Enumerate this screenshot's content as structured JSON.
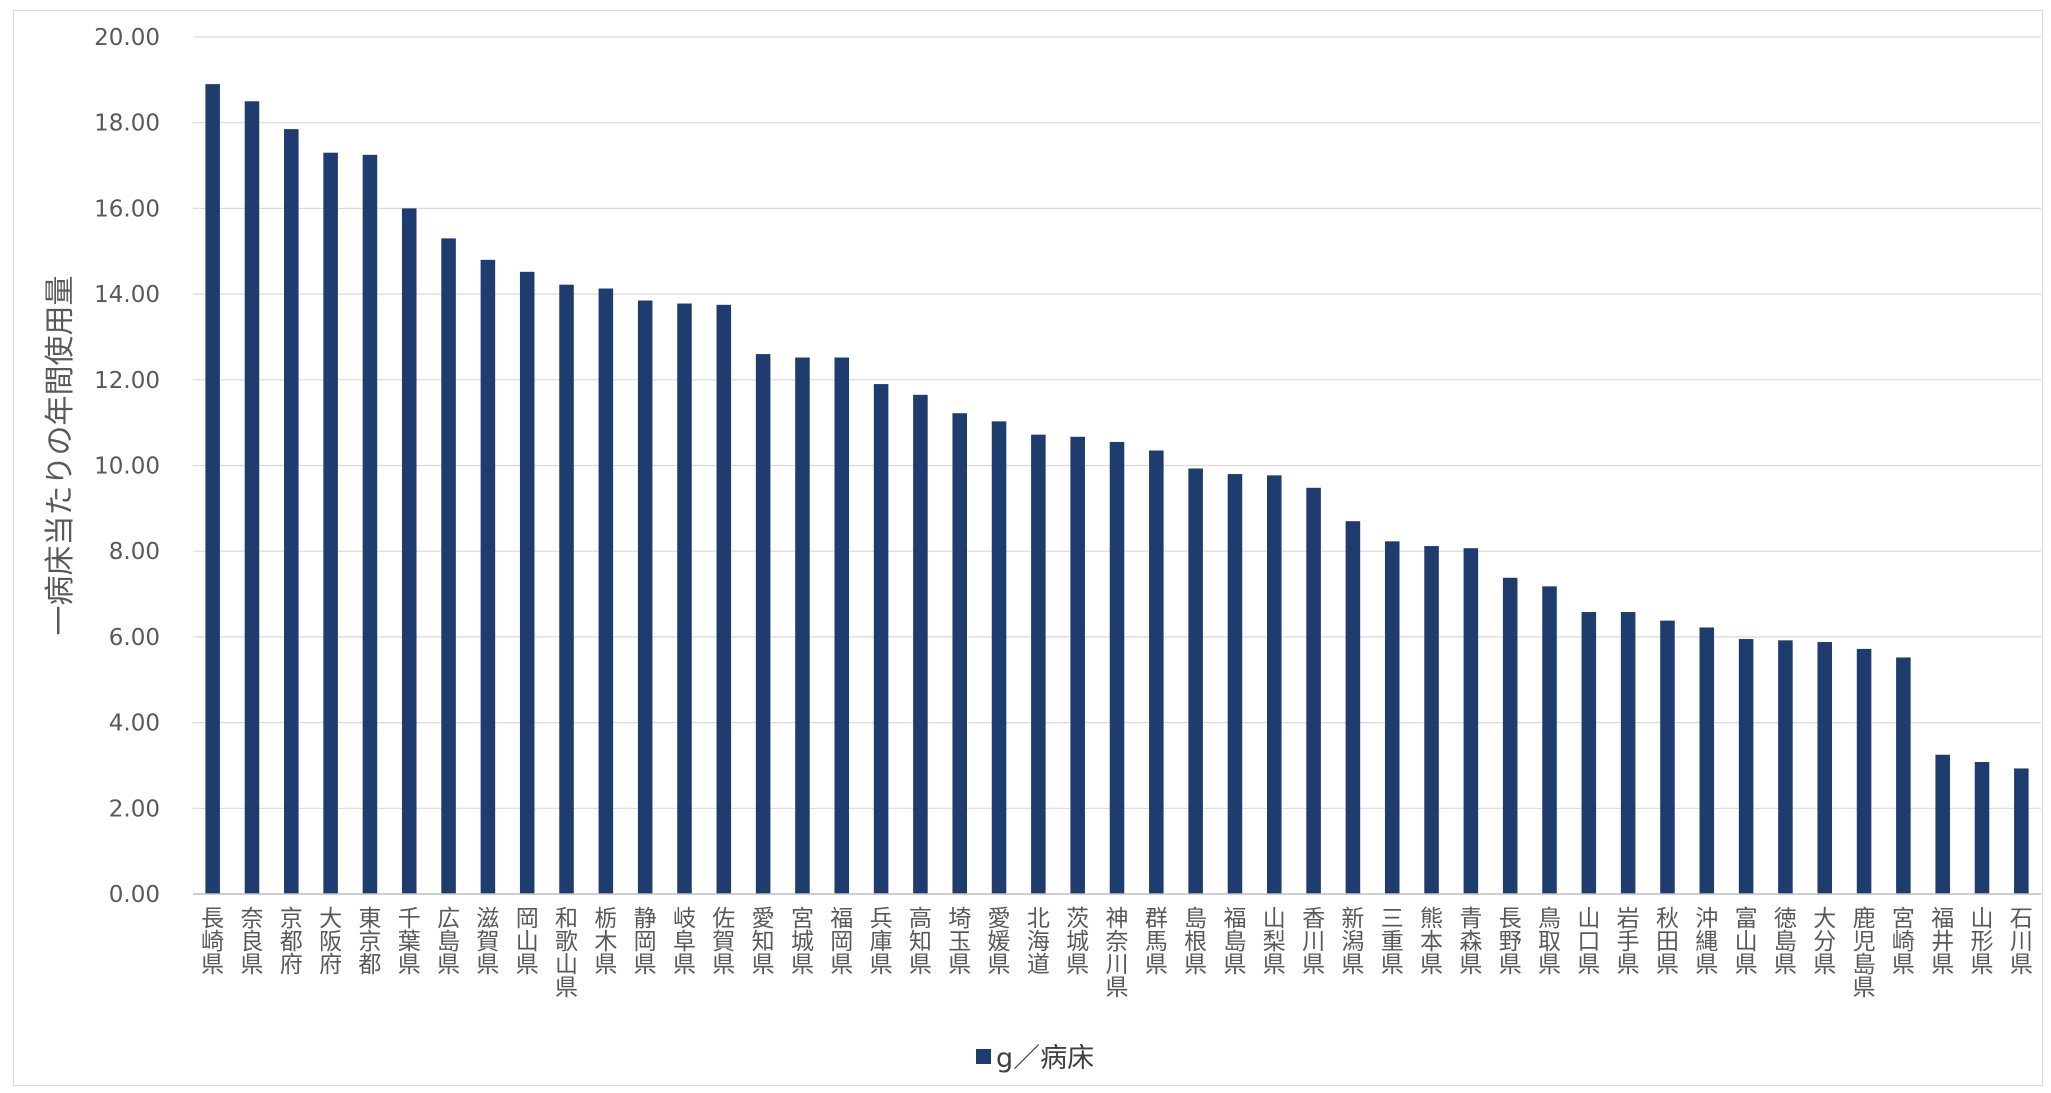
{
  "chart_data": {
    "type": "bar",
    "ylabel": "一病床当たりの年間使用量",
    "xlabel": "",
    "ylim": [
      0,
      20
    ],
    "ytick_step": 2,
    "ytick_labels": [
      "0.00",
      "2.00",
      "4.00",
      "6.00",
      "8.00",
      "10.00",
      "12.00",
      "14.00",
      "16.00",
      "18.00",
      "20.00"
    ],
    "grid": true,
    "legend_position": "bottom",
    "bar_color": "#1f3c6e",
    "categories": [
      "長崎県",
      "奈良県",
      "京都府",
      "大阪府",
      "東京都",
      "千葉県",
      "広島県",
      "滋賀県",
      "岡山県",
      "和歌山県",
      "栃木県",
      "静岡県",
      "岐阜県",
      "佐賀県",
      "愛知県",
      "宮城県",
      "福岡県",
      "兵庫県",
      "高知県",
      "埼玉県",
      "愛媛県",
      "北海道",
      "茨城県",
      "神奈川県",
      "群馬県",
      "島根県",
      "福島県",
      "山梨県",
      "香川県",
      "新潟県",
      "三重県",
      "熊本県",
      "青森県",
      "長野県",
      "鳥取県",
      "山口県",
      "岩手県",
      "秋田県",
      "沖縄県",
      "富山県",
      "徳島県",
      "大分県",
      "鹿児島県",
      "宮崎県",
      "福井県",
      "山形県",
      "石川県"
    ],
    "series": [
      {
        "name": "g／病床",
        "values": [
          18.9,
          18.5,
          17.85,
          17.3,
          17.25,
          16.0,
          15.3,
          14.8,
          14.52,
          14.22,
          14.13,
          13.85,
          13.78,
          13.75,
          12.6,
          12.52,
          12.52,
          11.9,
          11.65,
          11.22,
          11.03,
          10.72,
          10.67,
          10.55,
          10.35,
          9.93,
          9.8,
          9.77,
          9.48,
          8.7,
          8.23,
          8.12,
          8.07,
          7.38,
          7.18,
          6.58,
          6.58,
          6.38,
          6.22,
          5.95,
          5.92,
          5.88,
          5.72,
          5.52,
          3.25,
          3.08,
          2.93
        ]
      }
    ]
  }
}
